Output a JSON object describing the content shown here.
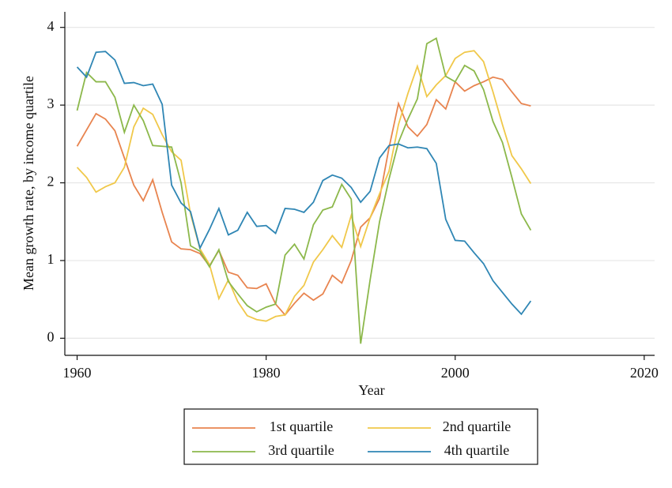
{
  "chart_data": {
    "type": "line",
    "xlabel": "Year",
    "ylabel": "Mean growth rate, by income quartile",
    "x": [
      1960,
      1961,
      1962,
      1963,
      1964,
      1965,
      1966,
      1967,
      1968,
      1969,
      1970,
      1971,
      1972,
      1973,
      1974,
      1975,
      1976,
      1977,
      1978,
      1979,
      1980,
      1981,
      1982,
      1983,
      1984,
      1985,
      1986,
      1987,
      1988,
      1989,
      1990,
      1991,
      1992,
      1993,
      1994,
      1995,
      1996,
      1997,
      1998,
      1999,
      2000,
      2001,
      2002,
      2003,
      2004,
      2005,
      2006,
      2007,
      2008
    ],
    "series": [
      {
        "name": "1st quartile",
        "color": "#e8844f",
        "values": [
          2.47,
          2.68,
          2.89,
          2.82,
          2.67,
          2.32,
          1.97,
          1.77,
          2.04,
          1.62,
          1.24,
          1.15,
          1.14,
          1.09,
          0.93,
          1.13,
          0.85,
          0.81,
          0.65,
          0.64,
          0.7,
          0.44,
          0.3,
          0.45,
          0.58,
          0.49,
          0.57,
          0.81,
          0.71,
          1.0,
          1.43,
          1.55,
          1.8,
          2.45,
          3.02,
          2.72,
          2.6,
          2.75,
          3.07,
          2.95,
          3.3,
          3.18,
          3.25,
          3.3,
          3.36,
          3.33,
          3.17,
          3.02,
          2.99
        ]
      },
      {
        "name": "2nd quartile",
        "color": "#f0c84a",
        "values": [
          2.2,
          2.07,
          1.88,
          1.95,
          2.0,
          2.2,
          2.72,
          2.96,
          2.88,
          2.62,
          2.4,
          2.29,
          1.6,
          1.15,
          0.95,
          0.51,
          0.75,
          0.47,
          0.29,
          0.24,
          0.22,
          0.28,
          0.3,
          0.54,
          0.68,
          0.98,
          1.14,
          1.32,
          1.17,
          1.58,
          1.18,
          1.55,
          1.86,
          2.15,
          2.75,
          3.15,
          3.5,
          3.11,
          3.26,
          3.38,
          3.6,
          3.68,
          3.7,
          3.56,
          3.17,
          2.75,
          2.35,
          2.18,
          1.99
        ]
      },
      {
        "name": "3rd quartile",
        "color": "#8cb84b",
        "values": [
          2.93,
          3.42,
          3.3,
          3.3,
          3.1,
          2.65,
          3.0,
          2.8,
          2.48,
          2.47,
          2.46,
          2.0,
          1.19,
          1.12,
          0.92,
          1.14,
          0.73,
          0.57,
          0.42,
          0.34,
          0.4,
          0.44,
          1.07,
          1.21,
          1.02,
          1.46,
          1.65,
          1.69,
          1.98,
          1.79,
          -0.07,
          0.75,
          1.5,
          2.05,
          2.52,
          2.82,
          3.08,
          3.79,
          3.86,
          3.37,
          3.3,
          3.51,
          3.44,
          3.2,
          2.79,
          2.52,
          2.07,
          1.6,
          1.39
        ]
      },
      {
        "name": "4th quartile",
        "color": "#2f86b4",
        "values": [
          3.49,
          3.36,
          3.68,
          3.69,
          3.58,
          3.28,
          3.29,
          3.25,
          3.27,
          3.01,
          1.97,
          1.74,
          1.63,
          1.16,
          1.4,
          1.67,
          1.33,
          1.39,
          1.62,
          1.44,
          1.45,
          1.35,
          1.67,
          1.66,
          1.62,
          1.75,
          2.03,
          2.1,
          2.06,
          1.94,
          1.75,
          1.89,
          2.32,
          2.48,
          2.5,
          2.45,
          2.46,
          2.44,
          2.25,
          1.53,
          1.26,
          1.25,
          1.1,
          0.96,
          0.74,
          0.59,
          0.44,
          0.31,
          0.48
        ]
      }
    ],
    "xlim": [
      1958.7,
      2021.1
    ],
    "xticks": [
      1960,
      1980,
      2000,
      2020
    ],
    "ylim": [
      -0.22,
      4.2
    ],
    "yticks": [
      0,
      1,
      2,
      3,
      4
    ],
    "grid": true,
    "legend": "bottom"
  }
}
